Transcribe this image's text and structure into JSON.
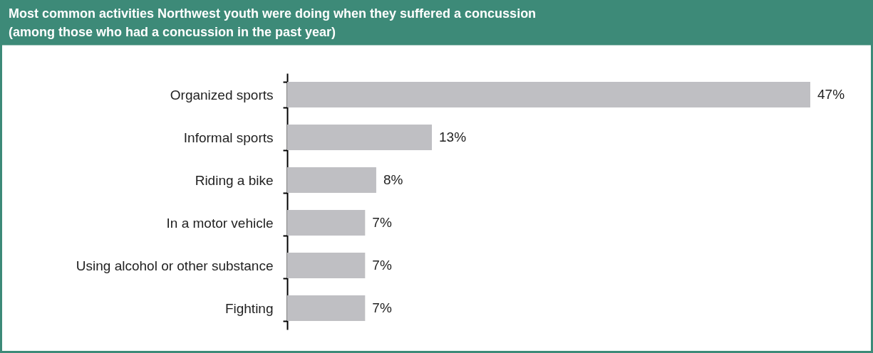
{
  "chart_data": {
    "type": "bar",
    "orientation": "horizontal",
    "title": "Most common activities Northwest youth were doing when they suffered a concussion",
    "subtitle": "(among those who had a concussion in the past year)",
    "categories": [
      "Organized sports",
      "Informal sports",
      "Riding a bike",
      "In a motor vehicle",
      "Using alcohol or other substance",
      "Fighting"
    ],
    "values": [
      47,
      13,
      8,
      7,
      7,
      7
    ],
    "value_labels": [
      "47%",
      "13%",
      "8%",
      "7%",
      "7%",
      "7%"
    ],
    "color": "#bfbfc3"
  }
}
